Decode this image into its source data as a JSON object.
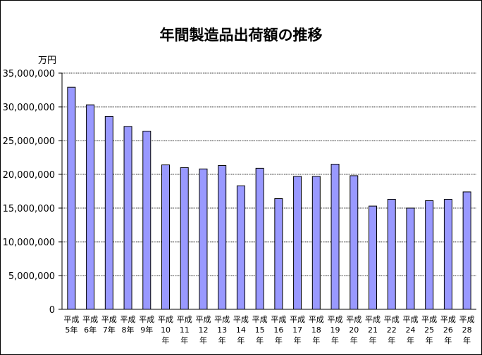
{
  "chart_data": {
    "type": "bar",
    "title": "年間製造品出荷額の推移",
    "unit": "万円",
    "categories": [
      "平成5年",
      "平成6年",
      "平成7年",
      "平成8年",
      "平成9年",
      "平成10年",
      "平成11年",
      "平成12年",
      "平成13年",
      "平成14年",
      "平成15年",
      "平成16年",
      "平成17年",
      "平成18年",
      "平成19年",
      "平成20年",
      "平成21年",
      "平成22年",
      "平成24年",
      "平成25年",
      "平成26年",
      "平成28年"
    ],
    "category_labels": [
      [
        "平成",
        "5年"
      ],
      [
        "平成",
        "6年"
      ],
      [
        "平成",
        "7年"
      ],
      [
        "平成",
        "8年"
      ],
      [
        "平成",
        "9年"
      ],
      [
        "平成",
        "10",
        "年"
      ],
      [
        "平成",
        "11",
        "年"
      ],
      [
        "平成",
        "12",
        "年"
      ],
      [
        "平成",
        "13",
        "年"
      ],
      [
        "平成",
        "14",
        "年"
      ],
      [
        "平成",
        "15",
        "年"
      ],
      [
        "平成",
        "16",
        "年"
      ],
      [
        "平成",
        "17",
        "年"
      ],
      [
        "平成",
        "18",
        "年"
      ],
      [
        "平成",
        "19",
        "年"
      ],
      [
        "平成",
        "20",
        "年"
      ],
      [
        "平成",
        "21",
        "年"
      ],
      [
        "平成",
        "22",
        "年"
      ],
      [
        "平成",
        "24",
        "年"
      ],
      [
        "平成",
        "25",
        "年"
      ],
      [
        "平成",
        "26",
        "年"
      ],
      [
        "平成",
        "28",
        "年"
      ]
    ],
    "values": [
      32900000,
      30300000,
      28600000,
      27100000,
      26400000,
      21400000,
      21000000,
      20800000,
      21300000,
      18300000,
      20900000,
      16400000,
      19700000,
      19700000,
      21500000,
      19800000,
      15300000,
      16300000,
      15000000,
      16100000,
      16300000,
      17400000
    ],
    "ylim": [
      0,
      35000000
    ],
    "yticks": [
      0,
      5000000,
      10000000,
      15000000,
      20000000,
      25000000,
      30000000,
      35000000
    ],
    "ytick_labels": [
      "0",
      "5,000,000",
      "10,000,000",
      "15,000,000",
      "20,000,000",
      "25,000,000",
      "30,000,000",
      "35,000,000"
    ],
    "grid": true,
    "colors": {
      "bar_fill": "#9999ff",
      "bar_stroke": "#000000",
      "grid": "#000000",
      "axis": "#000000"
    }
  }
}
